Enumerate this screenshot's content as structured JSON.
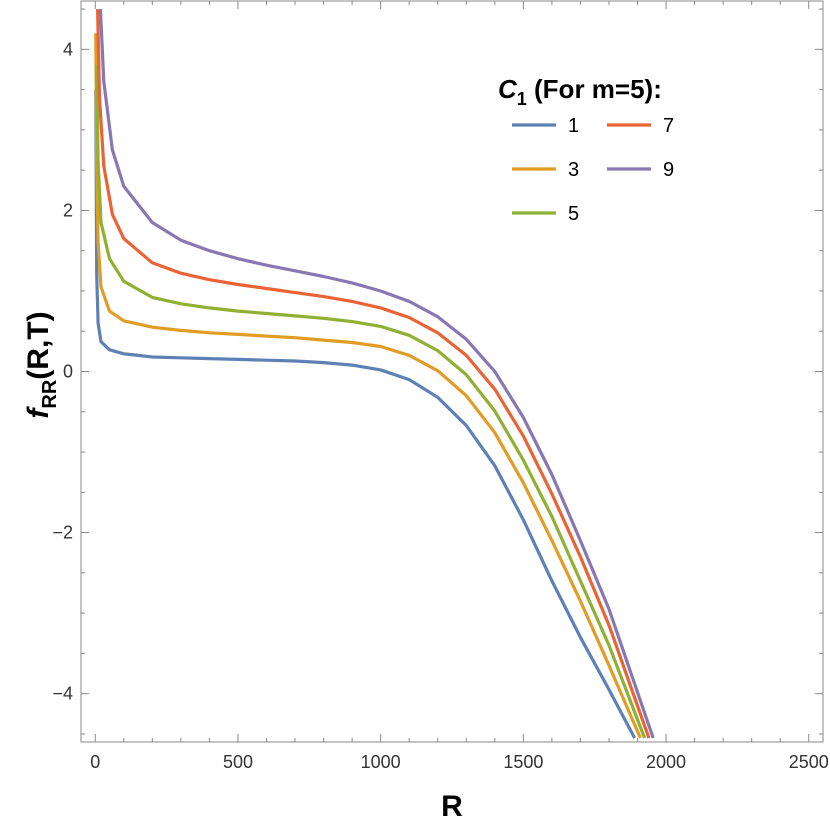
{
  "chart_data": {
    "type": "line",
    "xlabel": "R",
    "ylabel": {
      "main": "f",
      "sub": "RR",
      "rest": "(R,T)"
    },
    "xlim": [
      -50,
      2550
    ],
    "ylim": [
      -4.6,
      4.6
    ],
    "xticks": [
      0,
      500,
      1000,
      1500,
      2000,
      2500
    ],
    "yticks": [
      -4,
      -2,
      0,
      2,
      4
    ],
    "xtick_labels": [
      "0",
      "500",
      "1000",
      "1500",
      "2000",
      "2500"
    ],
    "ytick_labels": [
      "−4",
      "−2",
      "0",
      "2",
      "4"
    ],
    "grid": false,
    "legend": {
      "placement": "top-right",
      "title_main": "C",
      "title_sub": "1",
      "title_rest": " (For m=5):"
    },
    "series": [
      {
        "name": "1",
        "color": "#5e81b5",
        "x": [
          2,
          5,
          10,
          20,
          50,
          100,
          200,
          300,
          400,
          500,
          600,
          700,
          800,
          900,
          1000,
          1100,
          1200,
          1300,
          1400,
          1500,
          1600,
          1700,
          1800,
          1890
        ],
        "y": [
          3.5,
          1.2,
          0.6,
          0.37,
          0.27,
          0.22,
          0.18,
          0.17,
          0.16,
          0.15,
          0.14,
          0.13,
          0.11,
          0.08,
          0.02,
          -0.1,
          -0.32,
          -0.67,
          -1.17,
          -1.84,
          -2.6,
          -3.3,
          -3.95,
          -4.55
        ]
      },
      {
        "name": "3",
        "color": "#e19c24",
        "x": [
          2,
          5,
          10,
          20,
          50,
          100,
          200,
          300,
          400,
          500,
          600,
          700,
          800,
          900,
          1000,
          1100,
          1200,
          1300,
          1400,
          1500,
          1600,
          1700,
          1800,
          1910
        ],
        "y": [
          4.2,
          2.6,
          1.6,
          1.05,
          0.75,
          0.63,
          0.55,
          0.51,
          0.48,
          0.46,
          0.44,
          0.42,
          0.39,
          0.36,
          0.31,
          0.2,
          0.01,
          -0.3,
          -0.76,
          -1.38,
          -2.1,
          -2.85,
          -3.65,
          -4.55
        ]
      },
      {
        "name": "5",
        "color": "#8fb032",
        "x": [
          5,
          10,
          20,
          50,
          100,
          200,
          300,
          400,
          500,
          600,
          700,
          800,
          900,
          1000,
          1100,
          1200,
          1300,
          1400,
          1500,
          1600,
          1700,
          1800,
          1925
        ],
        "y": [
          3.8,
          2.6,
          1.85,
          1.4,
          1.12,
          0.92,
          0.84,
          0.79,
          0.75,
          0.72,
          0.69,
          0.66,
          0.62,
          0.56,
          0.45,
          0.26,
          -0.04,
          -0.49,
          -1.1,
          -1.8,
          -2.6,
          -3.4,
          -4.55
        ]
      },
      {
        "name": "7",
        "color": "#eb6235",
        "x": [
          8,
          15,
          30,
          60,
          100,
          200,
          300,
          400,
          500,
          600,
          700,
          800,
          900,
          1000,
          1100,
          1200,
          1300,
          1400,
          1500,
          1600,
          1700,
          1800,
          1940
        ],
        "y": [
          4.5,
          3.4,
          2.55,
          1.95,
          1.65,
          1.35,
          1.22,
          1.14,
          1.08,
          1.03,
          0.98,
          0.93,
          0.87,
          0.79,
          0.67,
          0.48,
          0.2,
          -0.22,
          -0.8,
          -1.52,
          -2.3,
          -3.15,
          -4.55
        ]
      },
      {
        "name": "9",
        "color": "#8778b3",
        "x": [
          18,
          30,
          60,
          100,
          200,
          300,
          400,
          500,
          600,
          700,
          800,
          900,
          1000,
          1100,
          1200,
          1300,
          1400,
          1500,
          1600,
          1700,
          1800,
          1955
        ],
        "y": [
          4.5,
          3.6,
          2.75,
          2.3,
          1.85,
          1.63,
          1.5,
          1.4,
          1.32,
          1.25,
          1.18,
          1.1,
          1.0,
          0.87,
          0.68,
          0.4,
          0.0,
          -0.57,
          -1.28,
          -2.1,
          -2.95,
          -4.55
        ]
      }
    ]
  }
}
